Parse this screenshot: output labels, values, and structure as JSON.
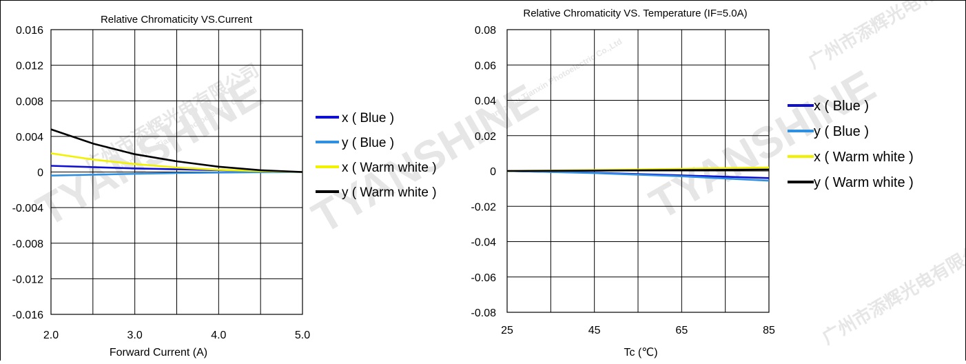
{
  "chart_data": [
    {
      "type": "line",
      "title": "Relative Chromaticity VS.Current",
      "xlabel": "Forward Current (A)",
      "ylabel": "",
      "x_ticks": [
        "2.0",
        "3.0",
        "4.0",
        "5.0"
      ],
      "y_ticks": [
        "0.016",
        "0.012",
        "0.008",
        "0.004",
        "0",
        "-0.004",
        "-0.008",
        "-0.012",
        "-0.016"
      ],
      "xlim": [
        2.0,
        5.0
      ],
      "ylim": [
        -0.016,
        0.016
      ],
      "grid": true,
      "legend_position": "right",
      "series": [
        {
          "name": "x ( Blue )",
          "color": "#1010d0",
          "x": [
            2.0,
            2.5,
            3.0,
            3.5,
            4.0,
            4.5,
            5.0
          ],
          "y": [
            0.0007,
            0.00055,
            0.0004,
            0.0003,
            0.0002,
            0.0001,
            0.0
          ]
        },
        {
          "name": "y ( Blue )",
          "color": "#2f8fe0",
          "x": [
            2.0,
            2.5,
            3.0,
            3.5,
            4.0,
            4.5,
            5.0
          ],
          "y": [
            -0.0004,
            -0.0003,
            -0.0002,
            -0.00012,
            -6e-05,
            -2e-05,
            0.0
          ]
        },
        {
          "name": "x ( Warm white )",
          "color": "#f2f200",
          "x": [
            2.0,
            2.5,
            3.0,
            3.5,
            4.0,
            4.5,
            5.0
          ],
          "y": [
            0.0021,
            0.0014,
            0.0009,
            0.0005,
            0.00025,
            0.0001,
            0.0
          ]
        },
        {
          "name": "y ( Warm white )",
          "color": "#000000",
          "x": [
            2.0,
            2.5,
            3.0,
            3.5,
            4.0,
            4.5,
            5.0
          ],
          "y": [
            0.0048,
            0.0032,
            0.002,
            0.0012,
            0.0006,
            0.0002,
            0.0
          ]
        }
      ]
    },
    {
      "type": "line",
      "title": "Relative Chromaticity VS. Temperature (IF=5.0A)",
      "xlabel": "Tc (℃)",
      "ylabel": "",
      "x_ticks": [
        "25",
        "45",
        "65",
        "85"
      ],
      "y_ticks": [
        "0.08",
        "0.06",
        "0.04",
        "0.02",
        "0",
        "-0.02",
        "-0.04",
        "-0.06",
        "-0.08"
      ],
      "xlim": [
        25,
        85
      ],
      "ylim": [
        -0.08,
        0.08
      ],
      "grid": true,
      "legend_position": "right",
      "series": [
        {
          "name": "x ( Blue )",
          "color": "#1010d0",
          "x": [
            25,
            45,
            65,
            85
          ],
          "y": [
            0.0,
            -0.001,
            -0.0025,
            -0.004
          ]
        },
        {
          "name": "y ( Blue )",
          "color": "#2f8fe0",
          "x": [
            25,
            45,
            65,
            85
          ],
          "y": [
            0.0,
            -0.0012,
            -0.003,
            -0.0055
          ]
        },
        {
          "name": "x ( Warm white )",
          "color": "#f2f200",
          "x": [
            25,
            45,
            65,
            85
          ],
          "y": [
            0.0,
            0.0005,
            0.0012,
            0.002
          ]
        },
        {
          "name": "y ( Warm white )",
          "color": "#000000",
          "x": [
            25,
            45,
            65,
            85
          ],
          "y": [
            0.0,
            0.0002,
            0.0005,
            0.0008
          ]
        }
      ]
    }
  ],
  "watermarks": [
    "TYANSHINE",
    "广州市添辉光电有限公司",
    "Guangzhou Tianxin Photoelectric Co.,Ltd"
  ]
}
